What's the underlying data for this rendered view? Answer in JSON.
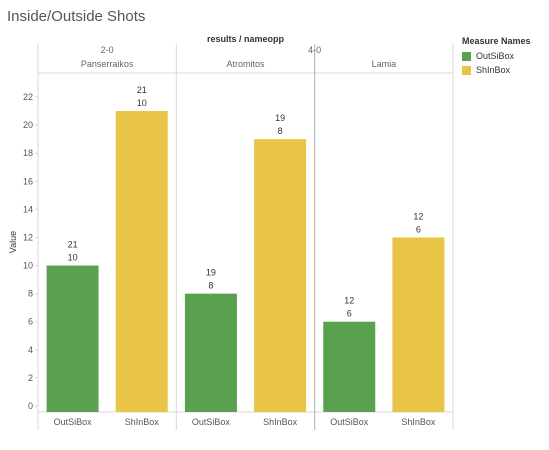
{
  "title": "Inside/Outside Shots",
  "legend": {
    "title": "Measure Names",
    "items": [
      {
        "label": "OutSiBox",
        "color": "#59a14f"
      },
      {
        "label": "ShInBox",
        "color": "#e8c547"
      }
    ]
  },
  "chart_data": {
    "type": "bar",
    "header_title": "results / nameopp",
    "ylabel": "Value",
    "ylim": [
      0,
      23
    ],
    "yticks": [
      0,
      2,
      4,
      6,
      8,
      10,
      12,
      14,
      16,
      18,
      20,
      22
    ],
    "grid": false,
    "legend_position": "right",
    "result_labels": [
      "2-0",
      "4-0"
    ],
    "panels": [
      {
        "name": "Panserraikos",
        "bars": [
          {
            "measure": "OutSiBox",
            "value": 10,
            "label_top": "21",
            "label_bottom": "10"
          },
          {
            "measure": "ShInBox",
            "value": 21,
            "label_top": "21",
            "label_bottom": "10"
          }
        ]
      },
      {
        "name": "Atromitos",
        "bars": [
          {
            "measure": "OutSiBox",
            "value": 8,
            "label_top": "19",
            "label_bottom": "8"
          },
          {
            "measure": "ShInBox",
            "value": 19,
            "label_top": "19",
            "label_bottom": "8"
          }
        ]
      },
      {
        "name": "Lamia",
        "bars": [
          {
            "measure": "OutSiBox",
            "value": 6,
            "label_top": "12",
            "label_bottom": "6"
          },
          {
            "measure": "ShInBox",
            "value": 12,
            "label_top": "12",
            "label_bottom": "6"
          }
        ]
      }
    ]
  }
}
